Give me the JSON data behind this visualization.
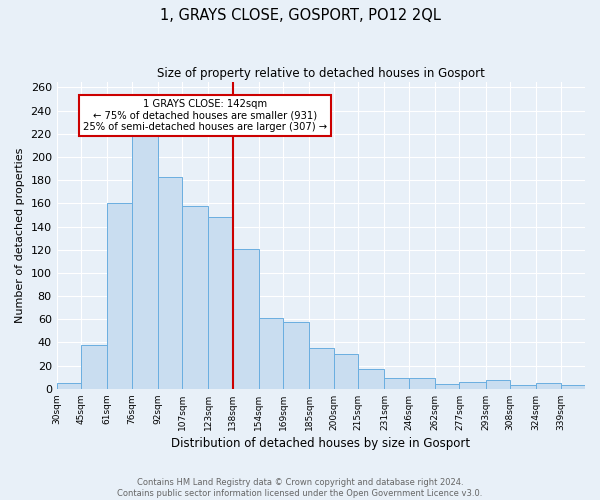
{
  "title": "1, GRAYS CLOSE, GOSPORT, PO12 2QL",
  "subtitle": "Size of property relative to detached houses in Gosport",
  "xlabel": "Distribution of detached houses by size in Gosport",
  "ylabel": "Number of detached properties",
  "bin_labels": [
    "30sqm",
    "45sqm",
    "61sqm",
    "76sqm",
    "92sqm",
    "107sqm",
    "123sqm",
    "138sqm",
    "154sqm",
    "169sqm",
    "185sqm",
    "200sqm",
    "215sqm",
    "231sqm",
    "246sqm",
    "262sqm",
    "277sqm",
    "293sqm",
    "308sqm",
    "324sqm",
    "339sqm"
  ],
  "bar_values": [
    5,
    38,
    160,
    218,
    183,
    158,
    148,
    121,
    61,
    58,
    35,
    30,
    17,
    9,
    9,
    4,
    6,
    8,
    3,
    5,
    3
  ],
  "bin_edges": [
    30,
    45,
    61,
    76,
    92,
    107,
    123,
    138,
    154,
    169,
    185,
    200,
    215,
    231,
    246,
    262,
    277,
    293,
    308,
    324,
    339,
    354
  ],
  "bar_color": "#c9ddf0",
  "bar_edge_color": "#6aaee0",
  "property_bin_index": 7,
  "vline_color": "#cc0000",
  "annotation_title": "1 GRAYS CLOSE: 142sqm",
  "annotation_line1": "← 75% of detached houses are smaller (931)",
  "annotation_line2": "25% of semi-detached houses are larger (307) →",
  "annotation_box_color": "#ffffff",
  "annotation_box_edge_color": "#cc0000",
  "ylim": [
    0,
    265
  ],
  "yticks": [
    0,
    20,
    40,
    60,
    80,
    100,
    120,
    140,
    160,
    180,
    200,
    220,
    240,
    260
  ],
  "bg_color": "#e8f0f8",
  "grid_color": "#ffffff",
  "footer_line1": "Contains HM Land Registry data © Crown copyright and database right 2024.",
  "footer_line2": "Contains public sector information licensed under the Open Government Licence v3.0."
}
